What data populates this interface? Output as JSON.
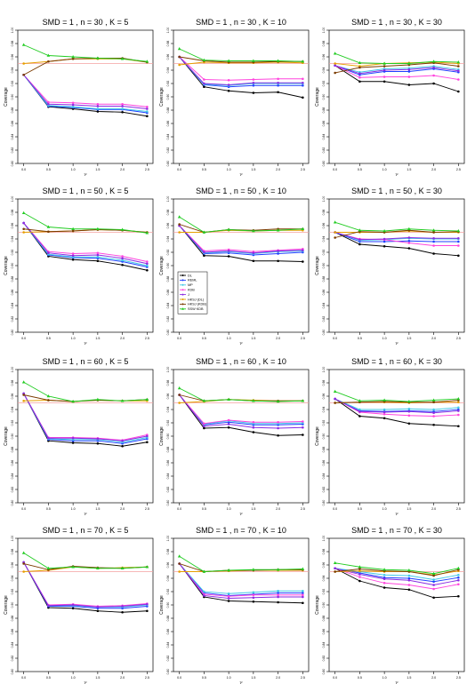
{
  "chart_data": {
    "type": "line",
    "layout": "4x3 grid",
    "x": [
      0.0,
      0.5,
      1.0,
      1.5,
      2.0,
      2.5
    ],
    "x_tick_labels": [
      "0.0",
      "0.5",
      "1.0",
      "1.5",
      "2.0",
      "2.5"
    ],
    "y_tick_labels": [
      "0.80",
      "0.82",
      "0.84",
      "0.86",
      "0.88",
      "0.90",
      "0.92",
      "0.94",
      "0.96",
      "0.98",
      "1.00"
    ],
    "ylim": [
      0.8,
      1.0
    ],
    "xlabel": "τ²",
    "ylabel": "Coverage",
    "reference_line": {
      "y": 0.95,
      "color": "#f4a0a0"
    },
    "legend": {
      "placement": "in panel row 2, column 2, left side",
      "entries": [
        {
          "label": "DL",
          "color": "#000000",
          "marker": "circle"
        },
        {
          "label": "REML",
          "color": "#1f3fff",
          "marker": "circle"
        },
        {
          "label": "MP",
          "color": "#41c8e6",
          "marker": "circle"
        },
        {
          "label": "KDB",
          "color": "#ff44dd",
          "marker": "circle"
        },
        {
          "label": "J",
          "color": "#8a2be2",
          "marker": "circle"
        },
        {
          "label": "HKSJ (DL)",
          "color": "#e69f00",
          "marker": "circle"
        },
        {
          "label": "HKSJ (KDB)",
          "color": "#7a3b00",
          "marker": "circle"
        },
        {
          "label": "SSW KDB",
          "color": "#22cc22",
          "marker": "triangle"
        }
      ]
    },
    "panels": [
      {
        "title": "SMD = 1 , n = 30 , K = 5",
        "series": {
          "DL": [
            0.933,
            0.885,
            0.882,
            0.878,
            0.877,
            0.871
          ],
          "REML": [
            0.933,
            0.886,
            0.884,
            0.881,
            0.881,
            0.876
          ],
          "MP": [
            0.933,
            0.887,
            0.885,
            0.882,
            0.882,
            0.878
          ],
          "KDB": [
            0.933,
            0.892,
            0.891,
            0.889,
            0.889,
            0.885
          ],
          "J": [
            0.933,
            0.889,
            0.888,
            0.886,
            0.886,
            0.882
          ],
          "HKSJ (DL)": [
            0.95,
            0.953,
            0.957,
            0.957,
            0.957,
            0.952
          ],
          "HKSJ (KDB)": [
            0.933,
            0.953,
            0.957,
            0.958,
            0.958,
            0.952
          ],
          "SSW KDB": [
            0.978,
            0.962,
            0.96,
            0.958,
            0.957,
            0.953
          ]
        }
      },
      {
        "title": "SMD = 1 , n = 30 , K = 10",
        "series": {
          "DL": [
            0.96,
            0.915,
            0.909,
            0.906,
            0.907,
            0.899
          ],
          "REML": [
            0.96,
            0.918,
            0.915,
            0.917,
            0.917,
            0.917
          ],
          "MP": [
            0.96,
            0.919,
            0.917,
            0.92,
            0.92,
            0.92
          ],
          "KDB": [
            0.96,
            0.926,
            0.925,
            0.926,
            0.927,
            0.927
          ],
          "J": [
            0.96,
            0.92,
            0.918,
            0.921,
            0.921,
            0.921
          ],
          "HKSJ (DL)": [
            0.948,
            0.952,
            0.951,
            0.951,
            0.952,
            0.951
          ],
          "HKSJ (KDB)": [
            0.96,
            0.954,
            0.952,
            0.952,
            0.953,
            0.953
          ],
          "SSW KDB": [
            0.972,
            0.955,
            0.954,
            0.954,
            0.954,
            0.953
          ]
        }
      },
      {
        "title": "SMD = 1 , n = 30 , K = 30",
        "series": {
          "DL": [
            0.947,
            0.923,
            0.923,
            0.918,
            0.92,
            0.908
          ],
          "REML": [
            0.947,
            0.933,
            0.938,
            0.938,
            0.942,
            0.937
          ],
          "MP": [
            0.947,
            0.937,
            0.942,
            0.943,
            0.946,
            0.941
          ],
          "KDB": [
            0.947,
            0.929,
            0.93,
            0.93,
            0.932,
            0.926
          ],
          "J": [
            0.947,
            0.935,
            0.94,
            0.941,
            0.944,
            0.939
          ],
          "HKSJ (DL)": [
            0.95,
            0.946,
            0.95,
            0.951,
            0.952,
            0.95
          ],
          "HKSJ (KDB)": [
            0.936,
            0.944,
            0.946,
            0.948,
            0.951,
            0.946
          ],
          "SSW KDB": [
            0.965,
            0.951,
            0.95,
            0.95,
            0.953,
            0.952
          ]
        }
      },
      {
        "title": "SMD = 1 , n = 50 , K = 5",
        "series": {
          "DL": [
            0.964,
            0.914,
            0.909,
            0.907,
            0.901,
            0.893
          ],
          "REML": [
            0.964,
            0.916,
            0.912,
            0.911,
            0.906,
            0.898
          ],
          "MP": [
            0.964,
            0.917,
            0.913,
            0.913,
            0.908,
            0.9
          ],
          "KDB": [
            0.964,
            0.921,
            0.918,
            0.919,
            0.914,
            0.906
          ],
          "J": [
            0.964,
            0.919,
            0.915,
            0.916,
            0.911,
            0.903
          ],
          "HKSJ (DL)": [
            0.95,
            0.951,
            0.952,
            0.954,
            0.953,
            0.95
          ],
          "HKSJ (KDB)": [
            0.955,
            0.951,
            0.952,
            0.954,
            0.953,
            0.95
          ],
          "SSW KDB": [
            0.979,
            0.958,
            0.955,
            0.955,
            0.954,
            0.949
          ]
        }
      },
      {
        "title": "SMD = 1 , n = 50 , K = 10",
        "series": {
          "DL": [
            0.96,
            0.915,
            0.914,
            0.907,
            0.907,
            0.906
          ],
          "REML": [
            0.96,
            0.918,
            0.919,
            0.916,
            0.918,
            0.92
          ],
          "MP": [
            0.96,
            0.919,
            0.921,
            0.918,
            0.921,
            0.922
          ],
          "KDB": [
            0.96,
            0.922,
            0.924,
            0.921,
            0.923,
            0.925
          ],
          "J": [
            0.96,
            0.92,
            0.922,
            0.919,
            0.922,
            0.923
          ],
          "HKSJ (DL)": [
            0.95,
            0.95,
            0.953,
            0.952,
            0.953,
            0.953
          ],
          "HKSJ (KDB)": [
            0.962,
            0.95,
            0.954,
            0.953,
            0.955,
            0.955
          ],
          "SSW KDB": [
            0.973,
            0.95,
            0.954,
            0.952,
            0.953,
            0.955
          ]
        }
      },
      {
        "title": "SMD = 1 , n = 50 , K = 30",
        "series": {
          "DL": [
            0.95,
            0.932,
            0.929,
            0.926,
            0.918,
            0.915
          ],
          "REML": [
            0.95,
            0.936,
            0.936,
            0.937,
            0.936,
            0.936
          ],
          "MP": [
            0.95,
            0.938,
            0.939,
            0.941,
            0.94,
            0.94
          ],
          "KDB": [
            0.95,
            0.94,
            0.939,
            0.934,
            0.93,
            0.93
          ],
          "J": [
            0.95,
            0.939,
            0.94,
            0.942,
            0.941,
            0.941
          ],
          "HKSJ (DL)": [
            0.95,
            0.95,
            0.95,
            0.952,
            0.95,
            0.95
          ],
          "HKSJ (KDB)": [
            0.942,
            0.951,
            0.95,
            0.953,
            0.95,
            0.951
          ],
          "SSW KDB": [
            0.965,
            0.953,
            0.952,
            0.955,
            0.953,
            0.952
          ]
        }
      },
      {
        "title": "SMD = 1 , n = 60 , K = 5",
        "series": {
          "DL": [
            0.964,
            0.893,
            0.89,
            0.889,
            0.885,
            0.891
          ],
          "REML": [
            0.964,
            0.895,
            0.893,
            0.893,
            0.889,
            0.896
          ],
          "MP": [
            0.964,
            0.896,
            0.895,
            0.895,
            0.891,
            0.898
          ],
          "KDB": [
            0.964,
            0.898,
            0.898,
            0.897,
            0.894,
            0.902
          ],
          "J": [
            0.964,
            0.897,
            0.897,
            0.896,
            0.893,
            0.9
          ],
          "HKSJ (DL)": [
            0.953,
            0.954,
            0.952,
            0.954,
            0.953,
            0.953
          ],
          "HKSJ (KDB)": [
            0.962,
            0.954,
            0.952,
            0.954,
            0.953,
            0.955
          ],
          "SSW KDB": [
            0.981,
            0.96,
            0.952,
            0.955,
            0.953,
            0.955
          ]
        }
      },
      {
        "title": "SMD = 1 , n = 60 , K = 10",
        "series": {
          "DL": [
            0.962,
            0.912,
            0.913,
            0.906,
            0.901,
            0.902
          ],
          "REML": [
            0.962,
            0.917,
            0.921,
            0.917,
            0.917,
            0.918
          ],
          "MP": [
            0.962,
            0.918,
            0.923,
            0.919,
            0.919,
            0.92
          ],
          "KDB": [
            0.962,
            0.919,
            0.924,
            0.921,
            0.921,
            0.922
          ],
          "J": [
            0.962,
            0.915,
            0.918,
            0.913,
            0.912,
            0.913
          ],
          "HKSJ (DL)": [
            0.95,
            0.952,
            0.955,
            0.954,
            0.953,
            0.953
          ],
          "HKSJ (KDB)": [
            0.962,
            0.953,
            0.955,
            0.953,
            0.953,
            0.953
          ],
          "SSW KDB": [
            0.972,
            0.953,
            0.955,
            0.953,
            0.952,
            0.953
          ]
        }
      },
      {
        "title": "SMD = 1 , n = 60 , K = 30",
        "series": {
          "DL": [
            0.956,
            0.93,
            0.927,
            0.919,
            0.917,
            0.915
          ],
          "REML": [
            0.956,
            0.938,
            0.937,
            0.938,
            0.937,
            0.94
          ],
          "MP": [
            0.956,
            0.94,
            0.94,
            0.941,
            0.94,
            0.943
          ],
          "KDB": [
            0.956,
            0.936,
            0.933,
            0.931,
            0.93,
            0.932
          ],
          "J": [
            0.956,
            0.937,
            0.936,
            0.937,
            0.935,
            0.938
          ],
          "HKSJ (DL)": [
            0.95,
            0.951,
            0.951,
            0.95,
            0.951,
            0.951
          ],
          "HKSJ (KDB)": [
            0.95,
            0.951,
            0.952,
            0.951,
            0.951,
            0.954
          ],
          "SSW KDB": [
            0.967,
            0.953,
            0.954,
            0.952,
            0.954,
            0.956
          ]
        }
      },
      {
        "title": "SMD = 1 , n = 70 , K = 5",
        "series": {
          "DL": [
            0.964,
            0.896,
            0.895,
            0.891,
            0.889,
            0.891
          ],
          "REML": [
            0.964,
            0.898,
            0.898,
            0.895,
            0.895,
            0.898
          ],
          "MP": [
            0.964,
            0.899,
            0.899,
            0.897,
            0.897,
            0.9
          ],
          "KDB": [
            0.964,
            0.9,
            0.901,
            0.898,
            0.899,
            0.902
          ],
          "J": [
            0.964,
            0.899,
            0.9,
            0.897,
            0.898,
            0.901
          ],
          "HKSJ (DL)": [
            0.95,
            0.952,
            0.957,
            0.955,
            0.956,
            0.957
          ],
          "HKSJ (KDB)": [
            0.962,
            0.953,
            0.958,
            0.956,
            0.955,
            0.957
          ],
          "SSW KDB": [
            0.978,
            0.955,
            0.957,
            0.955,
            0.955,
            0.957
          ]
        }
      },
      {
        "title": "SMD = 1 , n = 70 , K = 10",
        "series": {
          "DL": [
            0.962,
            0.912,
            0.906,
            0.905,
            0.904,
            0.903
          ],
          "REML": [
            0.962,
            0.918,
            0.914,
            0.916,
            0.918,
            0.918
          ],
          "MP": [
            0.962,
            0.92,
            0.917,
            0.919,
            0.921,
            0.921
          ],
          "KDB": [
            0.962,
            0.916,
            0.913,
            0.915,
            0.915,
            0.915
          ],
          "J": [
            0.962,
            0.914,
            0.91,
            0.911,
            0.912,
            0.912
          ],
          "HKSJ (DL)": [
            0.95,
            0.95,
            0.951,
            0.952,
            0.952,
            0.952
          ],
          "HKSJ (KDB)": [
            0.962,
            0.95,
            0.952,
            0.952,
            0.953,
            0.953
          ],
          "SSW KDB": [
            0.973,
            0.95,
            0.952,
            0.953,
            0.953,
            0.954
          ]
        }
      },
      {
        "title": "SMD = 1 , n = 70 , K = 30",
        "series": {
          "DL": [
            0.955,
            0.936,
            0.926,
            0.923,
            0.911,
            0.913
          ],
          "REML": [
            0.955,
            0.948,
            0.941,
            0.94,
            0.935,
            0.941
          ],
          "MP": [
            0.955,
            0.95,
            0.945,
            0.944,
            0.938,
            0.945
          ],
          "KDB": [
            0.955,
            0.942,
            0.933,
            0.93,
            0.924,
            0.931
          ],
          "J": [
            0.955,
            0.946,
            0.939,
            0.937,
            0.93,
            0.937
          ],
          "HKSJ (DL)": [
            0.95,
            0.951,
            0.95,
            0.95,
            0.945,
            0.951
          ],
          "HKSJ (KDB)": [
            0.95,
            0.954,
            0.951,
            0.95,
            0.944,
            0.953
          ],
          "SSW KDB": [
            0.963,
            0.957,
            0.953,
            0.952,
            0.947,
            0.955
          ]
        }
      }
    ]
  }
}
